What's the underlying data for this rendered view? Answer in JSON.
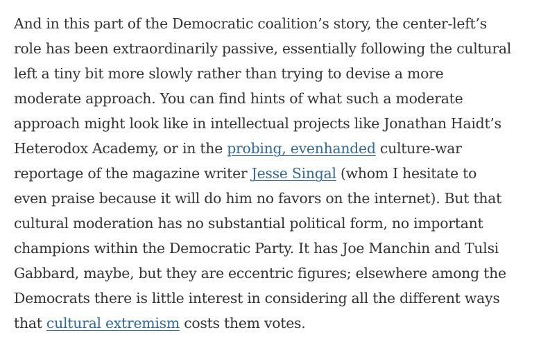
{
  "article": {
    "paragraph": {
      "lines": [
        "And in this part of the Democratic coalition’s story, the center-left’s",
        "role has been extraordinarily passive, essentially following the cultural",
        "left a tiny bit more slowly rather than trying to devise a more",
        "moderate approach. You can find hints of what such a moderate",
        "approach might look like in intellectual projects like Jonathan Haidt’s"
      ],
      "line6_before": "Heterodox Academy, or in the ",
      "link_probing": "probing, evenhanded",
      "line6_after": " culture-war",
      "line7_before": "reportage of the magazine writer ",
      "link_singal": "Jesse Singal",
      "line7_after": " (whom I hesitate to",
      "lines_mid": [
        "even praise because it will do him no favors on the internet). But that",
        "cultural moderation has no substantial political form, no important",
        "champions within the Democratic Party. It has Joe Manchin and Tulsi",
        "Gabbard, maybe, but they are eccentric figures; elsewhere among the",
        "Democrats there is little interest in considering all the different ways"
      ],
      "line13_before": "that ",
      "link_extremism": "cultural extremism",
      "line13_after": " costs them votes."
    }
  },
  "colors": {
    "text": "#333333",
    "link": "#326891",
    "background": "#ffffff"
  }
}
